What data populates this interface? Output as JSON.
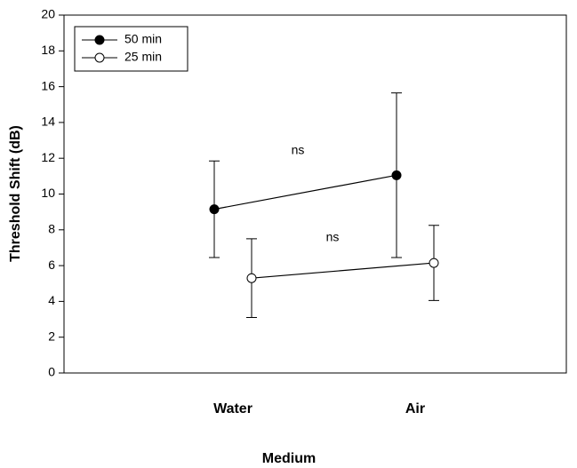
{
  "chart_data": {
    "type": "line",
    "categories": [
      "Water",
      "Air"
    ],
    "xlabel": "Medium",
    "ylabel": "Threshold Shift (dB)",
    "ylim": [
      0,
      20
    ],
    "yticks": [
      0,
      2,
      4,
      6,
      8,
      10,
      12,
      14,
      16,
      18,
      20
    ],
    "series": [
      {
        "name": "50 min",
        "color": "#000000",
        "marker": "filled",
        "values": [
          9.15,
          11.05
        ],
        "errors": [
          2.7,
          4.6
        ]
      },
      {
        "name": "25 min",
        "color": "#000000",
        "marker": "open",
        "values": [
          5.3,
          6.15
        ],
        "errors": [
          2.2,
          2.1
        ]
      }
    ],
    "annotations": [
      "ns",
      "ns"
    ],
    "legend": "upper left"
  }
}
